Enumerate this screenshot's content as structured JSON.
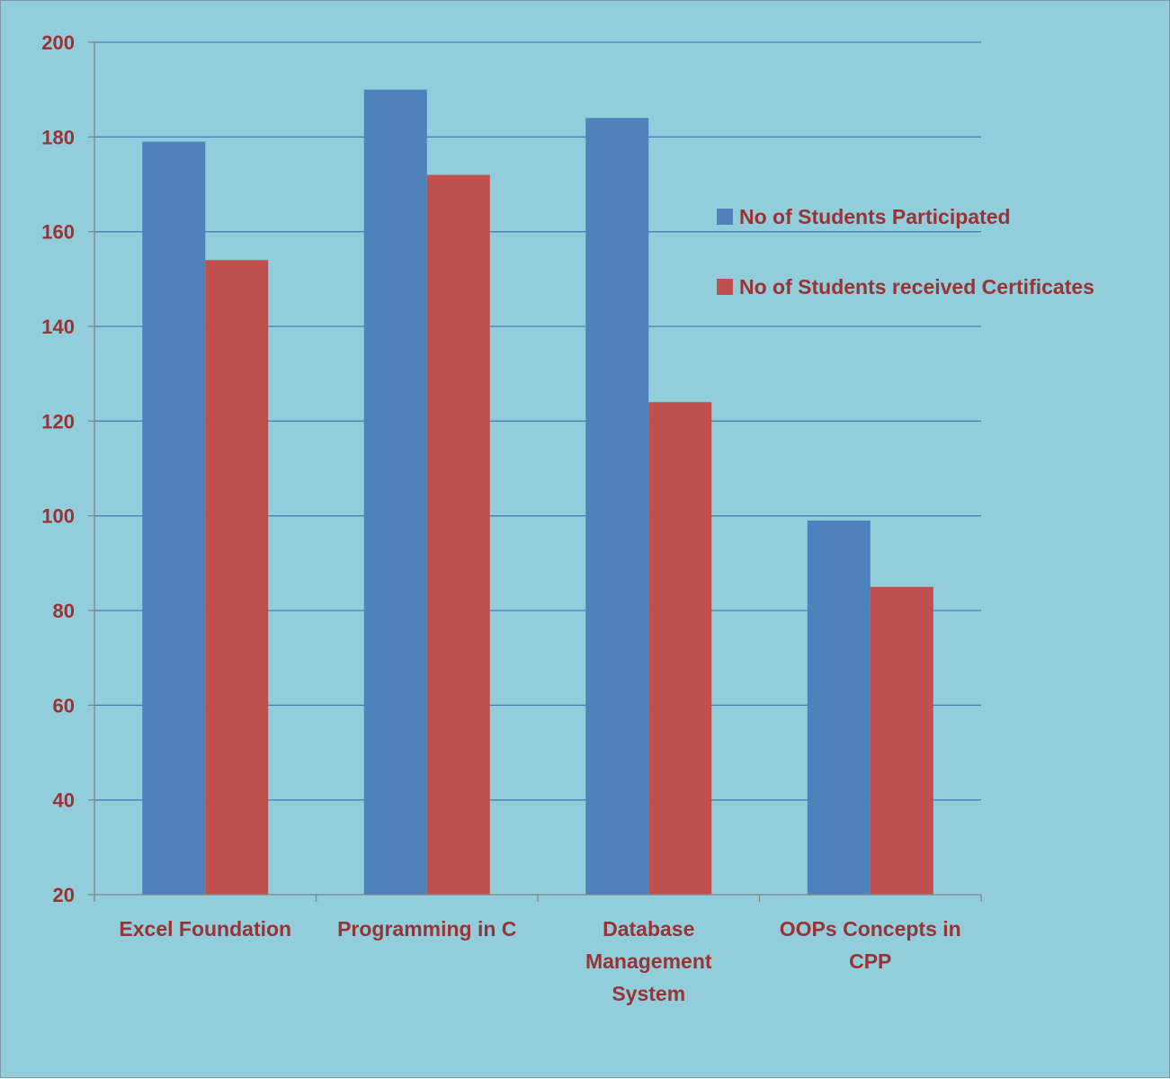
{
  "chart_data": {
    "type": "bar",
    "categories": [
      [
        "Excel Foundation"
      ],
      [
        "Programming in C"
      ],
      [
        "Database",
        "Management",
        "System"
      ],
      [
        "OOPs Concepts in",
        "CPP"
      ]
    ],
    "series": [
      {
        "name": "No of Students Participated",
        "color": "#4f81bd",
        "values": [
          179,
          190,
          184,
          99
        ]
      },
      {
        "name": "No of Students received Certificates",
        "color": "#c0504d",
        "values": [
          154,
          172,
          124,
          85
        ]
      }
    ],
    "ylim": [
      20,
      200
    ],
    "yticks": [
      20,
      40,
      60,
      80,
      100,
      120,
      140,
      160,
      180,
      200
    ],
    "grid": true,
    "legend_position": "right",
    "colors": {
      "background": "#92cddc",
      "gridline": "#4a7ebb",
      "axis": "#868686",
      "label_text": "#993334"
    }
  }
}
